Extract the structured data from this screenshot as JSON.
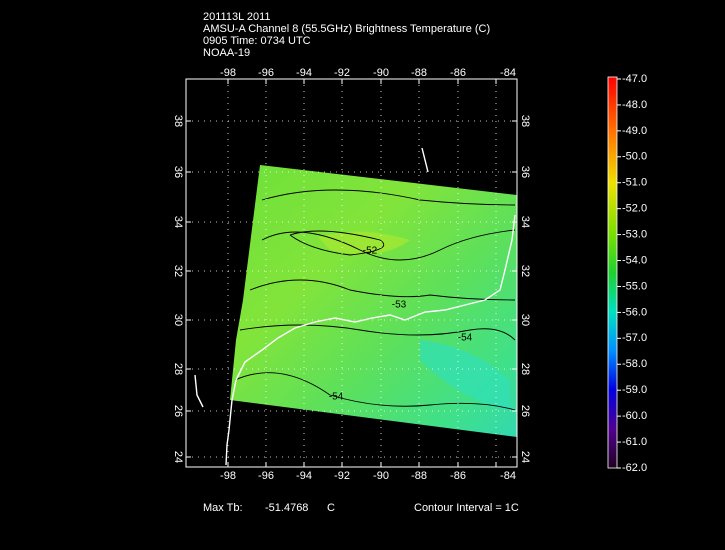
{
  "header": {
    "lines": [
      "201113L 2011",
      "AMSU-A Channel 8 (55.5GHz) Brightness Temperature (C)",
      "0905 Time: 0734 UTC",
      "NOAA-19"
    ]
  },
  "map": {
    "lon_labels": [
      "-98",
      "-96",
      "-94",
      "-92",
      "-90",
      "-88",
      "-86",
      "-84"
    ],
    "lat_labels": [
      "38",
      "36",
      "34",
      "32",
      "30",
      "28",
      "26",
      "24"
    ],
    "contour_labels": [
      "-52",
      "-53",
      "-54",
      "-54"
    ]
  },
  "colorbar": {
    "labels": [
      "-47.0",
      "-48.0",
      "-49.0",
      "-50.0",
      "-51.0",
      "-52.0",
      "-53.0",
      "-54.0",
      "-55.0",
      "-56.0",
      "-57.0",
      "-58.0",
      "-59.0",
      "-60.0",
      "-61.0",
      "-62.0"
    ]
  },
  "footer": {
    "max_label": "Max Tb:",
    "max_value": "-51.4768",
    "max_unit": "C",
    "contour_interval": "Contour Interval = 1C"
  }
}
